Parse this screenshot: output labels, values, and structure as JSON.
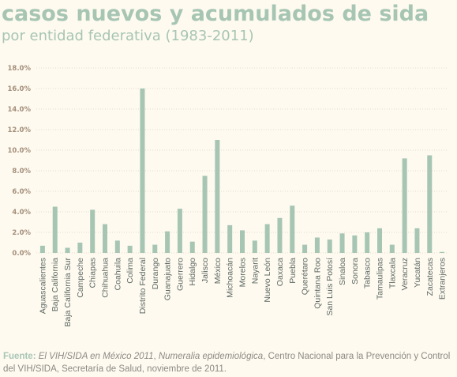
{
  "header": {
    "title": "casos nuevos y acumulados de sida",
    "subtitle": "por entidad federativa (1983-2011)"
  },
  "source": {
    "label": "Fuente:",
    "pub1": "El VIH/SIDA en México 2011",
    "sep1": ", ",
    "pub2": "Numeralia epidemiológica",
    "rest": ", Centro Nacional para la Prevención y Control del VIH/SIDA, Secretaría de Salud, noviembre de 2011."
  },
  "colors": {
    "bar": "#a7c5b3",
    "title": "#a7c5b3"
  },
  "chart_data": {
    "type": "bar",
    "categories": [
      "Aguascalientes",
      "Baja California",
      "Baja California Sur",
      "Campeche",
      "Chiapas",
      "Chihuahua",
      "Coahuila",
      "Colima",
      "Distrito Federal",
      "Durango",
      "Guanajuato",
      "Guerrero",
      "Hidalgo",
      "Jalisco",
      "México",
      "Michoacán",
      "Morelos",
      "Nayarit",
      "Nuevo León",
      "Oaxaca",
      "Puebla",
      "Querétaro",
      "Quintana Roo",
      "San Luis Potosí",
      "Sinaloa",
      "Sonora",
      "Tabasco",
      "Tamaulipas",
      "Tlaxcala",
      "Veracruz",
      "Yucatán",
      "Zacatecas",
      "Extranjeros"
    ],
    "values": [
      0.7,
      4.5,
      0.5,
      1.0,
      4.2,
      2.8,
      1.2,
      0.7,
      16.0,
      0.8,
      2.1,
      4.3,
      1.1,
      7.5,
      11.0,
      2.7,
      2.2,
      1.2,
      2.8,
      3.4,
      4.6,
      0.8,
      1.5,
      1.3,
      1.9,
      1.7,
      2.0,
      2.4,
      0.8,
      9.2,
      2.4,
      9.5,
      0.1
    ],
    "yticks": [
      "0.0%",
      "2.0%",
      "4.0%",
      "6.0%",
      "8.0%",
      "10.0%",
      "12.0%",
      "14.0%",
      "16.0%",
      "18.0%"
    ],
    "ylim": [
      0,
      18
    ],
    "grid": true,
    "xlabel": "",
    "ylabel": ""
  }
}
